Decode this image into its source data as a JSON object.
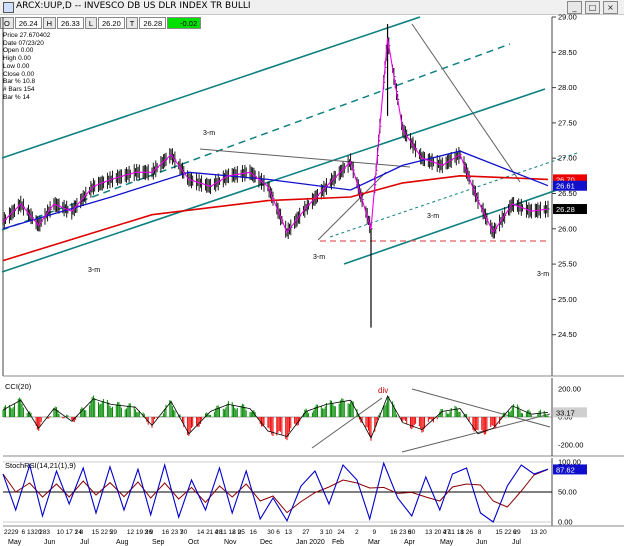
{
  "window": {
    "title": "ARCX:UUP,D -- INVESCO DB US DLR INDEX TR BULLI",
    "buttons": [
      "_",
      "□",
      "×"
    ]
  },
  "quote": {
    "open_label": "O",
    "open": "26.24",
    "high_label": "H",
    "high": "26.33",
    "low_label": "L",
    "low": "26.20",
    "close_label": "T",
    "close": "26.28",
    "change": "-0.02"
  },
  "info": [
    "Price  27.670402",
    "Date  07/23/20",
    "Open  0.00",
    "High  0.00",
    "Low  0.00",
    "Close  0.00",
    "Bar %  10.8",
    "# Bars  154",
    "Bar %  14"
  ],
  "colors": {
    "price_bars": "#000000",
    "ma_short": "#ee00ee",
    "ma_mid": "#1010cc",
    "ma_long": "#e00000",
    "channel": "#0e8080",
    "trend_gray": "#606060",
    "support_dashed": "#e06060",
    "cci_pos": "#008800",
    "cci_neg": "#ee0000",
    "stoch_k": "#0000cc",
    "stoch_d": "#8b0000",
    "div_label": "#cc0000"
  },
  "chart_data": [
    {
      "type": "line",
      "title": "",
      "xlabel": "",
      "ylabel": "",
      "ylim": [
        24.0,
        29.0
      ],
      "grid": false,
      "x_date_range": [
        "2019-05-22",
        "2020-07-23"
      ],
      "y_ticks": [
        "29.00",
        "28.50",
        "28.00",
        "27.50",
        "27.00",
        "26.50",
        "26.00",
        "25.50",
        "25.00",
        "24.50"
      ],
      "price_labels": [
        {
          "value": "26.70",
          "color": "#ee0000",
          "y": 26.7
        },
        {
          "value": "26.61",
          "color": "#1010cc",
          "y": 26.61
        },
        {
          "value": "26.28",
          "color": "#000000",
          "y": 26.28
        }
      ],
      "series": [
        {
          "name": "",
          "points": [
            [
              "2019-05-22",
              26.1
            ],
            [
              "2019-06-05",
              26.35
            ],
            [
              "2019-06-19",
              26.05
            ],
            [
              "2019-07-01",
              26.35
            ],
            [
              "2019-07-15",
              26.25
            ],
            [
              "2019-08-01",
              26.6
            ],
            [
              "2019-08-15",
              26.7
            ],
            [
              "2019-09-03",
              26.8
            ],
            [
              "2019-09-16",
              26.8
            ],
            [
              "2019-10-01",
              27.05
            ],
            [
              "2019-10-15",
              26.7
            ],
            [
              "2019-11-01",
              26.6
            ],
            [
              "2019-11-15",
              26.75
            ],
            [
              "2019-12-02",
              26.8
            ],
            [
              "2019-12-16",
              26.6
            ],
            [
              "2019-12-31",
              25.95
            ],
            [
              "2020-01-15",
              26.3
            ],
            [
              "2020-01-31",
              26.6
            ],
            [
              "2020-02-19",
              26.95
            ],
            [
              "2020-03-06",
              26.0
            ],
            [
              "2020-03-19",
              28.7
            ],
            [
              "2020-03-31",
              27.4
            ],
            [
              "2020-04-15",
              27.0
            ],
            [
              "2020-05-01",
              26.9
            ],
            [
              "2020-05-15",
              27.05
            ],
            [
              "2020-05-29",
              26.4
            ],
            [
              "2020-06-10",
              25.95
            ],
            [
              "2020-06-25",
              26.35
            ],
            [
              "2020-07-10",
              26.25
            ],
            [
              "2020-07-23",
              26.28
            ]
          ]
        },
        {
          "name": "",
          "points": [
            [
              "2019-05-22",
              25.55
            ],
            [
              "2019-09-16",
              26.2
            ],
            [
              "2019-12-16",
              26.4
            ],
            [
              "2020-02-19",
              26.45
            ],
            [
              "2020-03-31",
              26.65
            ],
            [
              "2020-05-15",
              26.75
            ],
            [
              "2020-07-23",
              26.7
            ]
          ]
        },
        {
          "name": "",
          "points": [
            [
              "2019-05-22",
              26.0
            ],
            [
              "2019-08-15",
              26.45
            ],
            [
              "2019-10-15",
              26.8
            ],
            [
              "2019-12-16",
              26.7
            ],
            [
              "2020-02-19",
              26.55
            ],
            [
              "2020-03-31",
              26.9
            ],
            [
              "2020-05-15",
              27.1
            ],
            [
              "2020-07-23",
              26.61
            ]
          ]
        }
      ],
      "annotations": [
        "3-m",
        "3-m",
        "3-m",
        "3-m",
        "3-m"
      ],
      "x_tick_labels": [
        "2229",
        "6 1320",
        "283",
        "10 17 24",
        "1 8",
        "15 22 29",
        "5",
        "12 19 26",
        "3 9",
        "16 23 30",
        "7",
        "14 21 28",
        "4 11 18 25",
        "2 9",
        "16",
        "30 6",
        "13",
        "27",
        "3 10",
        "24",
        "2",
        "9",
        "16 23 30",
        "6",
        "13 20 27",
        "4 11 18 26",
        "1",
        "8",
        "15 22 29",
        "6",
        "13 20"
      ],
      "x_month_labels": [
        "May",
        "Jun",
        "Jul",
        "Aug",
        "Sep",
        "Oct",
        "Nov",
        "Dec",
        "Jan 2020",
        "Feb",
        "Mar",
        "Apr",
        "May",
        "Jun",
        "Jul"
      ]
    },
    {
      "type": "bar",
      "title": "CCI(20)",
      "ylim": [
        -250,
        250
      ],
      "y_ticks": [
        "200.00",
        "0.00",
        "-200.00"
      ],
      "current_value": "33.17",
      "annotation": "div",
      "series": [
        {
          "name": "",
          "points": [
            [
              "2019-05-22",
              50
            ],
            [
              "2019-06-05",
              120
            ],
            [
              "2019-06-19",
              -80
            ],
            [
              "2019-07-01",
              60
            ],
            [
              "2019-07-15",
              -30
            ],
            [
              "2019-08-01",
              130
            ],
            [
              "2019-08-15",
              90
            ],
            [
              "2019-09-03",
              70
            ],
            [
              "2019-09-16",
              -60
            ],
            [
              "2019-10-01",
              110
            ],
            [
              "2019-10-15",
              -120
            ],
            [
              "2019-11-01",
              40
            ],
            [
              "2019-11-15",
              90
            ],
            [
              "2019-12-02",
              60
            ],
            [
              "2019-12-16",
              -100
            ],
            [
              "2019-12-31",
              -140
            ],
            [
              "2020-01-15",
              40
            ],
            [
              "2020-01-31",
              90
            ],
            [
              "2020-02-19",
              120
            ],
            [
              "2020-03-06",
              -150
            ],
            [
              "2020-03-19",
              150
            ],
            [
              "2020-03-31",
              -40
            ],
            [
              "2020-04-15",
              -90
            ],
            [
              "2020-05-01",
              40
            ],
            [
              "2020-05-15",
              60
            ],
            [
              "2020-05-29",
              -120
            ],
            [
              "2020-06-10",
              -80
            ],
            [
              "2020-06-25",
              80
            ],
            [
              "2020-07-10",
              20
            ],
            [
              "2020-07-23",
              33
            ]
          ]
        }
      ]
    },
    {
      "type": "line",
      "title": "StochRSI(14,21(1),9)",
      "ylim": [
        0,
        100
      ],
      "y_ticks": [
        "100.00",
        "50.00",
        "0.00"
      ],
      "current_value": "87.62",
      "series": [
        {
          "name": "",
          "points": [
            [
              "2019-05-22",
              80
            ],
            [
              "2019-06-01",
              20
            ],
            [
              "2019-06-12",
              95
            ],
            [
              "2019-06-22",
              10
            ],
            [
              "2019-07-03",
              85
            ],
            [
              "2019-07-13",
              30
            ],
            [
              "2019-07-24",
              90
            ],
            [
              "2019-08-03",
              15
            ],
            [
              "2019-08-14",
              92
            ],
            [
              "2019-08-25",
              20
            ],
            [
              "2019-09-05",
              88
            ],
            [
              "2019-09-15",
              12
            ],
            [
              "2019-09-26",
              95
            ],
            [
              "2019-10-07",
              8
            ],
            [
              "2019-10-17",
              70
            ],
            [
              "2019-10-28",
              20
            ],
            [
              "2019-11-08",
              90
            ],
            [
              "2019-11-18",
              15
            ],
            [
              "2019-11-29",
              85
            ],
            [
              "2019-12-10",
              5
            ],
            [
              "2019-12-20",
              40
            ],
            [
              "2019-12-31",
              2
            ],
            [
              "2020-01-11",
              60
            ],
            [
              "2020-01-22",
              85
            ],
            [
              "2020-02-02",
              30
            ],
            [
              "2020-02-13",
              95
            ],
            [
              "2020-02-24",
              70
            ],
            [
              "2020-03-05",
              5
            ],
            [
              "2020-03-16",
              98
            ],
            [
              "2020-03-27",
              40
            ],
            [
              "2020-04-07",
              10
            ],
            [
              "2020-04-18",
              75
            ],
            [
              "2020-04-29",
              20
            ],
            [
              "2020-05-09",
              80
            ],
            [
              "2020-05-20",
              90
            ],
            [
              "2020-05-31",
              15
            ],
            [
              "2020-06-10",
              0
            ],
            [
              "2020-06-21",
              60
            ],
            [
              "2020-07-02",
              95
            ],
            [
              "2020-07-12",
              80
            ],
            [
              "2020-07-23",
              88
            ]
          ]
        }
      ]
    }
  ]
}
